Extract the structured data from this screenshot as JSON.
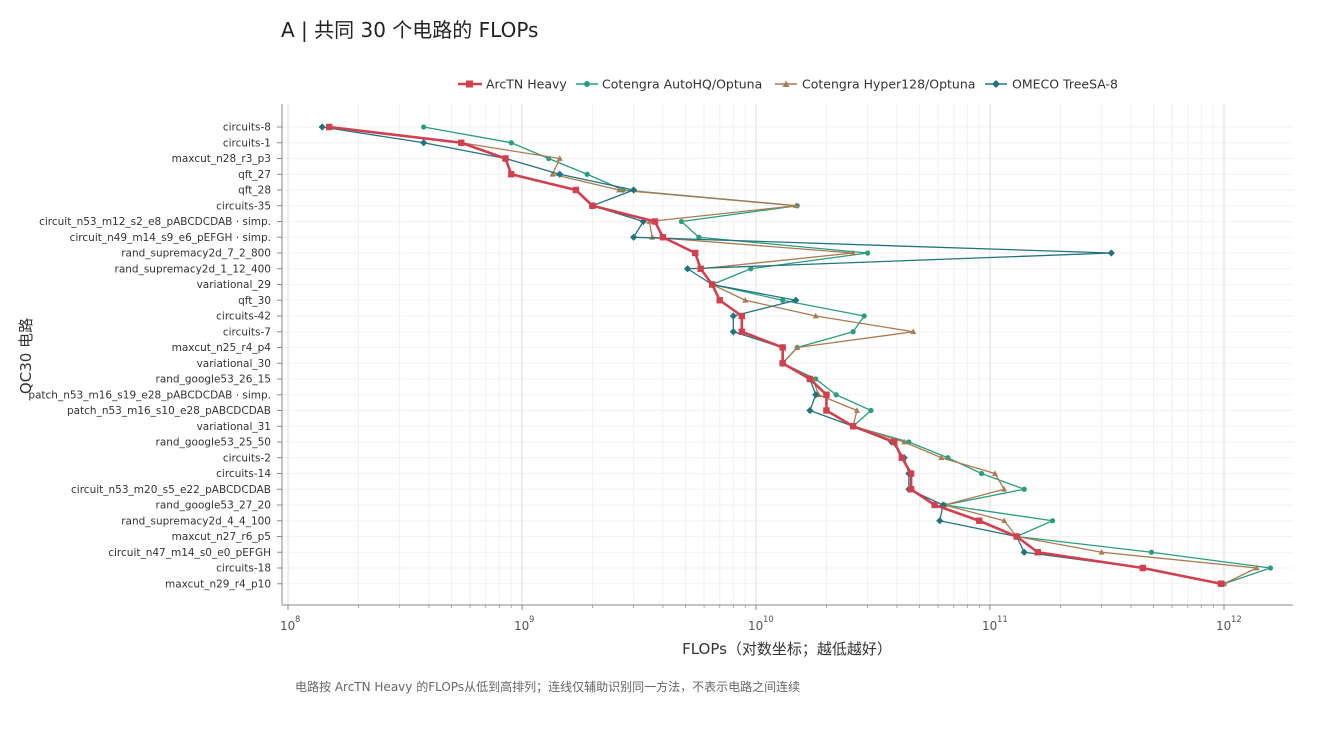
{
  "chart_data": {
    "type": "line",
    "orientation": "horizontal",
    "title": "A | 共同 30 个电路的 FLOPs",
    "xlabel": "FLOPs（对数坐标；越低越好）",
    "ylabel": "QC30 电路",
    "x_scale": "log",
    "xlim": [
      100000000.0,
      2000000000000.0
    ],
    "x_ticks": [
      {
        "base": "10",
        "exp": "8"
      },
      {
        "base": "10",
        "exp": "9"
      },
      {
        "base": "10",
        "exp": "10"
      },
      {
        "base": "10",
        "exp": "11"
      },
      {
        "base": "10",
        "exp": "12"
      }
    ],
    "grid": true,
    "legend_position": "top",
    "caption": "电路按 ArcTN Heavy 的FLOPs从低到高排列；连线仅辅助识别同一方法，不表示电路之间连续",
    "categories": [
      "circuits-8",
      "circuits-1",
      "maxcut_n28_r3_p3",
      "qft_27",
      "qft_28",
      "circuits-35",
      "circuit_n53_m12_s2_e8_pABCDCDAB · simp.",
      "circuit_n49_m14_s9_e6_pEFGH · simp.",
      "rand_supremacy2d_7_2_800",
      "rand_supremacy2d_1_12_400",
      "variational_29",
      "qft_30",
      "circuits-42",
      "circuits-7",
      "maxcut_n25_r4_p4",
      "variational_30",
      "rand_google53_26_15",
      "patch_n53_m16_s19_e28_pABCDCDAB · simp.",
      "patch_n53_m16_s10_e28_pABCDCDAB",
      "variational_31",
      "rand_google53_25_50",
      "circuits-2",
      "circuits-14",
      "circuit_n53_m20_s5_e22_pABCDCDAB",
      "rand_google53_27_20",
      "rand_supremacy2d_4_4_100",
      "maxcut_n27_r6_p5",
      "circuit_n47_m14_s0_e0_pEFGH",
      "circuits-18",
      "maxcut_n29_r4_p10"
    ],
    "series": [
      {
        "name": "ArcTN Heavy",
        "color": "#d0404f",
        "marker": "square",
        "values": [
          150000000.0,
          550000000.0,
          850000000.0,
          900000000.0,
          1700000000.0,
          2000000000.0,
          3700000000.0,
          4000000000.0,
          5500000000.0,
          5800000000.0,
          6500000000.0,
          7000000000.0,
          8700000000.0,
          8700000000.0,
          13000000000.0,
          13000000000.0,
          17000000000.0,
          20000000000.0,
          20000000000.0,
          26000000000.0,
          39000000000.0,
          42000000000.0,
          46000000000.0,
          46000000000.0,
          58000000000.0,
          90000000000.0,
          130000000000.0,
          160000000000.0,
          450000000000.0,
          970000000000.0
        ]
      },
      {
        "name": "Cotengra AutoHQ/Optuna",
        "color": "#2a9d7e",
        "marker": "circle",
        "values": [
          380000000.0,
          900000000.0,
          1300000000.0,
          1900000000.0,
          2700000000.0,
          15000000000.0,
          4800000000.0,
          5700000000.0,
          30000000000.0,
          9500000000.0,
          6500000000.0,
          13000000000.0,
          29000000000.0,
          26000000000.0,
          15000000000.0,
          13000000000.0,
          18000000000.0,
          22000000000.0,
          31000000000.0,
          26000000000.0,
          45000000000.0,
          66000000000.0,
          92000000000.0,
          140000000000.0,
          64000000000.0,
          185000000000.0,
          130000000000.0,
          490000000000.0,
          1580000000000.0,
          1000000000000.0
        ]
      },
      {
        "name": "Cotengra Hyper128/Optuna",
        "color": "#a97b52",
        "marker": "triangle",
        "values": [
          150000000.0,
          550000000.0,
          1450000000.0,
          1350000000.0,
          2600000000.0,
          14800000000.0,
          3500000000.0,
          3600000000.0,
          26000000000.0,
          5800000000.0,
          6500000000.0,
          9000000000.0,
          18000000000.0,
          47000000000.0,
          15000000000.0,
          13000000000.0,
          17500000000.0,
          18500000000.0,
          27000000000.0,
          26000000000.0,
          43000000000.0,
          62000000000.0,
          105000000000.0,
          115000000000.0,
          64000000000.0,
          115000000000.0,
          130000000000.0,
          300000000000.0,
          1380000000000.0,
          1000000000000.0
        ]
      },
      {
        "name": "OMECO TreeSA-8",
        "color": "#23737f",
        "marker": "diamond",
        "values": [
          140000000.0,
          380000000.0,
          850000000.0,
          1450000000.0,
          3000000000.0,
          2000000000.0,
          3300000000.0,
          3000000000.0,
          330000000000.0,
          5100000000.0,
          6500000000.0,
          14800000000.0,
          8000000000.0,
          8000000000.0,
          13000000000.0,
          13000000000.0,
          17000000000.0,
          18000000000.0,
          17000000000.0,
          26000000000.0,
          38000000000.0,
          43000000000.0,
          45000000000.0,
          45000000000.0,
          63000000000.0,
          61000000000.0,
          130000000000.0,
          140000000000.0,
          450000000000.0,
          970000000000.0
        ]
      }
    ]
  }
}
